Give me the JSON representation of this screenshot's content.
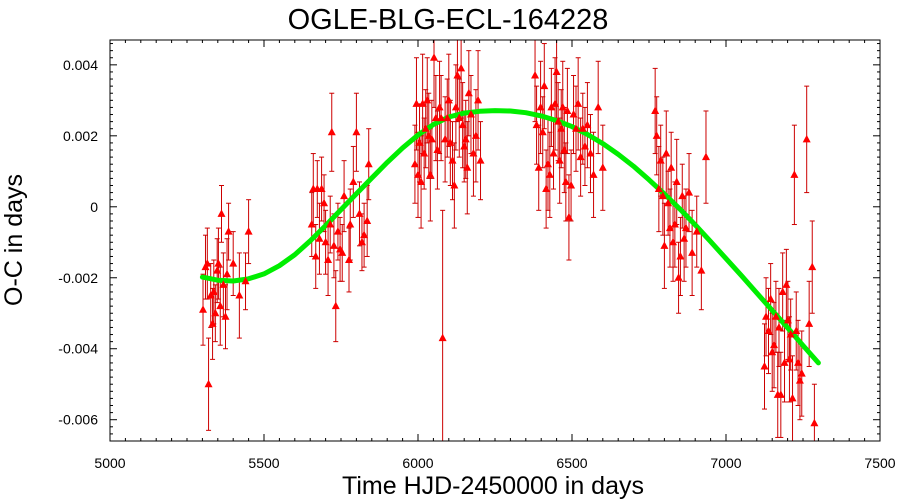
{
  "chart_data": {
    "type": "scatter",
    "title": "OGLE-BLG-ECL-164228",
    "xlabel": "Time HJD-2450000 in days",
    "ylabel": "O-C in days",
    "xlim": [
      5000,
      7500
    ],
    "ylim": [
      -0.0066,
      0.0047
    ],
    "xticks": [
      5000,
      5500,
      6000,
      6500,
      7000,
      7500
    ],
    "xtick_labels": [
      "5000",
      "5500",
      "6000",
      "6500",
      "7000",
      "7500"
    ],
    "yticks": [
      -0.006,
      -0.004,
      -0.002,
      0,
      0.002,
      0.004
    ],
    "ytick_labels": [
      "-0.006",
      "-0.004",
      "-0.002",
      "0",
      "0.002",
      "0.004"
    ],
    "grid": false,
    "legend": false,
    "colors": {
      "points": "#ff0000",
      "errorbars": "#cc0000",
      "fit": "#00ee00"
    },
    "series": [
      {
        "kind": "points-with-errorbars",
        "marker": "triangle",
        "points": [
          [
            5302,
            -0.0029,
            0.001
          ],
          [
            5310,
            -0.0017,
            0.0009
          ],
          [
            5316,
            -0.0016,
            0.001
          ],
          [
            5320,
            -0.005,
            0.0013
          ],
          [
            5327,
            -0.0025,
            0.0009
          ],
          [
            5333,
            -0.0033,
            0.001
          ],
          [
            5337,
            -0.0024,
            0.0009
          ],
          [
            5342,
            -0.003,
            0.0008
          ],
          [
            5348,
            -0.0018,
            0.0009
          ],
          [
            5352,
            -0.0016,
            0.001
          ],
          [
            5358,
            -0.0028,
            0.0011
          ],
          [
            5362,
            -0.0002,
            0.0008
          ],
          [
            5368,
            -0.0022,
            0.0009
          ],
          [
            5375,
            -0.0031,
            0.0009
          ],
          [
            5380,
            -0.0019,
            0.001
          ],
          [
            5385,
            -0.0007,
            0.0008
          ],
          [
            5400,
            -0.0016,
            0.0009
          ],
          [
            5420,
            -0.0025,
            0.0012
          ],
          [
            5440,
            -0.0021,
            0.0008
          ],
          [
            5450,
            -0.0007,
            0.0009
          ],
          [
            5655,
            -0.0005,
            0.0009
          ],
          [
            5660,
            0.0005,
            0.001
          ],
          [
            5668,
            -0.0014,
            0.0009
          ],
          [
            5673,
            0.0005,
            0.0008
          ],
          [
            5680,
            -0.0009,
            0.001
          ],
          [
            5687,
            0.0005,
            0.0009
          ],
          [
            5695,
            0.0001,
            0.0008
          ],
          [
            5700,
            -0.001,
            0.0009
          ],
          [
            5708,
            -0.0015,
            0.001
          ],
          [
            5715,
            -0.0005,
            0.0008
          ],
          [
            5720,
            0.0021,
            0.0011
          ],
          [
            5727,
            -0.0011,
            0.0009
          ],
          [
            5733,
            -0.0028,
            0.001
          ],
          [
            5740,
            -0.0007,
            0.0008
          ],
          [
            5747,
            -0.0012,
            0.0009
          ],
          [
            5754,
            -0.0013,
            0.0008
          ],
          [
            5760,
            0.0003,
            0.001
          ],
          [
            5776,
            -0.0015,
            0.0009
          ],
          [
            5780,
            -0.0005,
            0.001
          ],
          [
            5790,
            0.0007,
            0.001
          ],
          [
            5800,
            0.0021,
            0.0011
          ],
          [
            5810,
            -0.0002,
            0.0009
          ],
          [
            5818,
            -0.001,
            0.0008
          ],
          [
            5825,
            -0.0008,
            0.0009
          ],
          [
            5835,
            -0.0004,
            0.001
          ],
          [
            5840,
            0.0012,
            0.001
          ],
          [
            5990,
            0.0012,
            0.0011
          ],
          [
            5995,
            0.0029,
            0.0013
          ],
          [
            6000,
            0.0009,
            0.0012
          ],
          [
            6005,
            0.0018,
            0.0011
          ],
          [
            6010,
            0.0007,
            0.0013
          ],
          [
            6015,
            0.0029,
            0.0014
          ],
          [
            6020,
            0.0015,
            0.001
          ],
          [
            6025,
            0.0022,
            0.0011
          ],
          [
            6030,
            0.003,
            0.0012
          ],
          [
            6035,
            0.002,
            0.0012
          ],
          [
            6040,
            0.0009,
            0.0013
          ],
          [
            6045,
            0.0019,
            0.0011
          ],
          [
            6052,
            0.0042,
            0.0014
          ],
          [
            6058,
            0.0025,
            0.0012
          ],
          [
            6063,
            0.0016,
            0.0011
          ],
          [
            6070,
            0.0028,
            0.0013
          ],
          [
            6075,
            0.0025,
            0.0012
          ],
          [
            6080,
            -0.0037,
            0.0036
          ],
          [
            6088,
            0.0019,
            0.0012
          ],
          [
            6095,
            0.0025,
            0.0011
          ],
          [
            6100,
            0.003,
            0.0013
          ],
          [
            6105,
            0.0018,
            0.0012
          ],
          [
            6112,
            0.0013,
            0.0011
          ],
          [
            6118,
            0.0006,
            0.0012
          ],
          [
            6123,
            0.0028,
            0.0012
          ],
          [
            6128,
            0.0037,
            0.0013
          ],
          [
            6134,
            0.0025,
            0.0011
          ],
          [
            6140,
            0.0039,
            0.0014
          ],
          [
            6145,
            0.0023,
            0.0012
          ],
          [
            6150,
            0.0017,
            0.001
          ],
          [
            6155,
            0.0019,
            0.0011
          ],
          [
            6160,
            0.0011,
            0.0013
          ],
          [
            6165,
            0.0032,
            0.0012
          ],
          [
            6172,
            0.0026,
            0.0011
          ],
          [
            6180,
            0.0015,
            0.0012
          ],
          [
            6188,
            0.002,
            0.0013
          ],
          [
            6195,
            0.003,
            0.0014
          ],
          [
            6203,
            0.0013,
            0.0011
          ],
          [
            6380,
            0.0037,
            0.0013
          ],
          [
            6385,
            0.0023,
            0.0011
          ],
          [
            6392,
            0.0011,
            0.0012
          ],
          [
            6398,
            0.0028,
            0.0013
          ],
          [
            6405,
            0.0021,
            0.001
          ],
          [
            6410,
            0.0034,
            0.0012
          ],
          [
            6416,
            0.0005,
            0.0011
          ],
          [
            6422,
            0.0012,
            0.0013
          ],
          [
            6428,
            0.0009,
            0.0012
          ],
          [
            6433,
            0.0028,
            0.0011
          ],
          [
            6440,
            0.0015,
            0.001
          ],
          [
            6445,
            0.0029,
            0.0013
          ],
          [
            6450,
            0.0038,
            0.0014
          ],
          [
            6455,
            0.0024,
            0.0011
          ],
          [
            6460,
            0.0013,
            0.0012
          ],
          [
            6465,
            0.0022,
            0.0011
          ],
          [
            6470,
            0.0028,
            0.0013
          ],
          [
            6475,
            0.0016,
            0.0012
          ],
          [
            6480,
            0.0007,
            0.0011
          ],
          [
            6485,
            0.0027,
            0.0012
          ],
          [
            6490,
            -0.0003,
            0.0012
          ],
          [
            6497,
            0.0006,
            0.001
          ],
          [
            6505,
            0.0026,
            0.0011
          ],
          [
            6513,
            0.0022,
            0.0012
          ],
          [
            6520,
            0.0029,
            0.0013
          ],
          [
            6528,
            0.0014,
            0.0011
          ],
          [
            6535,
            0.0022,
            0.001
          ],
          [
            6542,
            0.0017,
            0.0011
          ],
          [
            6550,
            0.0023,
            0.0012
          ],
          [
            6560,
            0.0015,
            0.0011
          ],
          [
            6570,
            0.0009,
            0.0012
          ],
          [
            6585,
            0.0028,
            0.0013
          ],
          [
            6600,
            0.0011,
            0.0012
          ],
          [
            6770,
            0.0027,
            0.0012
          ],
          [
            6775,
            0.002,
            0.0011
          ],
          [
            6782,
            0.0005,
            0.0012
          ],
          [
            6788,
            0.0013,
            0.001
          ],
          [
            6795,
            0.0003,
            0.0011
          ],
          [
            6800,
            -0.0011,
            0.0012
          ],
          [
            6806,
            0.0015,
            0.0012
          ],
          [
            6812,
            0.0001,
            0.0009
          ],
          [
            6818,
            -0.0006,
            0.0011
          ],
          [
            6822,
            0.0011,
            0.001
          ],
          [
            6828,
            -0.001,
            0.0011
          ],
          [
            6834,
            -0.0005,
            0.0012
          ],
          [
            6840,
            0.0007,
            0.0012
          ],
          [
            6846,
            -0.002,
            0.001
          ],
          [
            6852,
            -0.0014,
            0.0011
          ],
          [
            6858,
            0.0003,
            0.0009
          ],
          [
            6864,
            -0.0009,
            0.0012
          ],
          [
            6870,
            -0.0006,
            0.0011
          ],
          [
            6880,
            0.0004,
            0.0011
          ],
          [
            6890,
            -0.0013,
            0.0012
          ],
          [
            6905,
            -0.0007,
            0.001
          ],
          [
            6920,
            -0.0018,
            0.0011
          ],
          [
            6935,
            0.0014,
            0.0013
          ],
          [
            7125,
            -0.0045,
            0.0012
          ],
          [
            7130,
            -0.0031,
            0.0011
          ],
          [
            7138,
            -0.0035,
            0.0012
          ],
          [
            7145,
            -0.0026,
            0.001
          ],
          [
            7150,
            -0.0041,
            0.0011
          ],
          [
            7156,
            -0.0039,
            0.0012
          ],
          [
            7162,
            -0.0031,
            0.001
          ],
          [
            7168,
            -0.0053,
            0.0012
          ],
          [
            7172,
            -0.0034,
            0.0011
          ],
          [
            7178,
            -0.0053,
            0.0012
          ],
          [
            7184,
            -0.0024,
            0.0011
          ],
          [
            7190,
            -0.0044,
            0.0011
          ],
          [
            7196,
            -0.0022,
            0.001
          ],
          [
            7201,
            -0.0032,
            0.0011
          ],
          [
            7206,
            -0.0043,
            0.0012
          ],
          [
            7210,
            -0.0036,
            0.001
          ],
          [
            7216,
            -0.0054,
            0.0012
          ],
          [
            7222,
            0.0009,
            0.0014
          ],
          [
            7228,
            -0.0035,
            0.0011
          ],
          [
            7234,
            -0.0044,
            0.0012
          ],
          [
            7240,
            -0.0049,
            0.0011
          ],
          [
            7246,
            -0.0047,
            0.0012
          ],
          [
            7262,
            0.0019,
            0.0015
          ],
          [
            7270,
            -0.0033,
            0.0012
          ],
          [
            7280,
            -0.0017,
            0.0013
          ],
          [
            7287,
            -0.0061,
            0.0011
          ]
        ]
      },
      {
        "kind": "fit-curve",
        "x": [
          5300,
          5350,
          5400,
          5450,
          5500,
          5550,
          5600,
          5650,
          5700,
          5750,
          5800,
          5850,
          5900,
          5950,
          6000,
          6050,
          6100,
          6150,
          6200,
          6250,
          6300,
          6350,
          6400,
          6450,
          6500,
          6550,
          6600,
          6650,
          6700,
          6750,
          6800,
          6850,
          6900,
          6950,
          7000,
          7050,
          7100,
          7150,
          7200,
          7250,
          7300
        ],
        "y": [
          -0.00198,
          -0.00207,
          -0.00209,
          -0.00203,
          -0.00189,
          -0.00166,
          -0.00135,
          -0.00096,
          -0.00053,
          -8e-05,
          0.00037,
          0.00081,
          0.00125,
          0.00166,
          0.00202,
          0.00232,
          0.00253,
          0.00264,
          0.00269,
          0.00271,
          0.0027,
          0.00265,
          0.00256,
          0.00243,
          0.00226,
          0.00204,
          0.00178,
          0.00148,
          0.00114,
          0.00076,
          0.00036,
          -6e-05,
          -0.00051,
          -0.00098,
          -0.00146,
          -0.00194,
          -0.00243,
          -0.00292,
          -0.00341,
          -0.00391,
          -0.0044
        ]
      }
    ]
  }
}
